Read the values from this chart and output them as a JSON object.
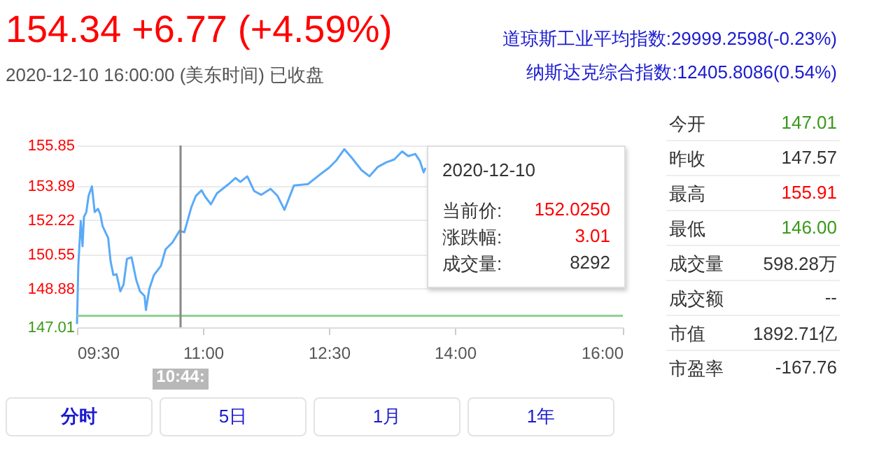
{
  "chart_data": {
    "type": "line",
    "title": "154.34 +6.77 (+4.59%)",
    "subtitle": "2020-12-10 16:00:00 (美东时间) 已收盘",
    "x": [
      9.5,
      9.516,
      9.545,
      9.566,
      9.583,
      9.611,
      9.638,
      9.678,
      9.711,
      9.75,
      9.778,
      9.805,
      9.871,
      9.9,
      9.933,
      9.971,
      10.016,
      10.055,
      10.095,
      10.15,
      10.205,
      10.25,
      10.305,
      10.321,
      10.361,
      10.416,
      10.5,
      10.555,
      10.638,
      10.721,
      10.778,
      10.861,
      10.916,
      10.983,
      11.028,
      11.095,
      11.166,
      11.305,
      11.388,
      11.445,
      11.528,
      11.611,
      11.695,
      11.805,
      11.888,
      11.971,
      12.083,
      12.25,
      12.388,
      12.5,
      12.583,
      12.683,
      12.778,
      12.888,
      12.983,
      13.083,
      13.183,
      13.278,
      13.371,
      13.445,
      13.528,
      13.583,
      13.628,
      13.65
    ],
    "series": [
      {
        "color": "#5aaaf8",
        "values": [
          147.17,
          150.0,
          152.18,
          150.95,
          152.38,
          152.61,
          153.4,
          153.86,
          152.61,
          152.77,
          152.5,
          151.93,
          151.36,
          150.23,
          149.55,
          149.59,
          148.76,
          149.1,
          150.34,
          150.41,
          149.32,
          148.76,
          148.53,
          147.85,
          148.87,
          149.55,
          150.0,
          150.8,
          151.14,
          151.7,
          151.63,
          152.84,
          153.4,
          153.67,
          153.35,
          152.99,
          153.52,
          153.97,
          154.27,
          154.08,
          154.35,
          153.63,
          153.45,
          153.74,
          153.4,
          152.72,
          153.9,
          153.97,
          154.42,
          154.76,
          155.1,
          155.67,
          155.22,
          154.65,
          154.35,
          154.81,
          155.03,
          155.17,
          155.56,
          155.33,
          155.44,
          155.1,
          154.54,
          154.76
        ]
      }
    ],
    "xlim": [
      9.5,
      16
    ],
    "xticks": [
      {
        "value": 9.5,
        "label": "09:30"
      },
      {
        "value": 11,
        "label": "11:00"
      },
      {
        "value": 12.5,
        "label": "12:30"
      },
      {
        "value": 14,
        "label": "14:00"
      },
      {
        "value": 16,
        "label": "16:00"
      }
    ],
    "ylim": [
      147.01,
      155.85
    ],
    "yticks": [
      147.01,
      148.88,
      150.55,
      152.22,
      153.89,
      155.85
    ],
    "grid": "y",
    "marker": "none",
    "line_style": "solid",
    "ref_lines": [
      {
        "axis": "y",
        "value": 147.57,
        "color": "#90d090"
      },
      {
        "axis": "x",
        "value": 10.7333,
        "color": "#888888"
      }
    ],
    "annotations": [
      "道琼斯工业平均指数:29999.2598(-0.23%)",
      "纳斯达克综合指数:12405.8086(0.54%)",
      "今开",
      "147.01",
      "昨收",
      "147.57",
      "最高",
      "155.91",
      "最低",
      "146.00",
      "成交量",
      "598.28万",
      "成交额",
      "--",
      "市值",
      "1892.71亿",
      "市盈率",
      "-167.76",
      "分时",
      "5日",
      "1月",
      "1年",
      "2020-12-10",
      "当前价:",
      "152.0250",
      "涨跌幅:",
      "3.01",
      "成交量:",
      "8292",
      "10:44:"
    ]
  }
}
